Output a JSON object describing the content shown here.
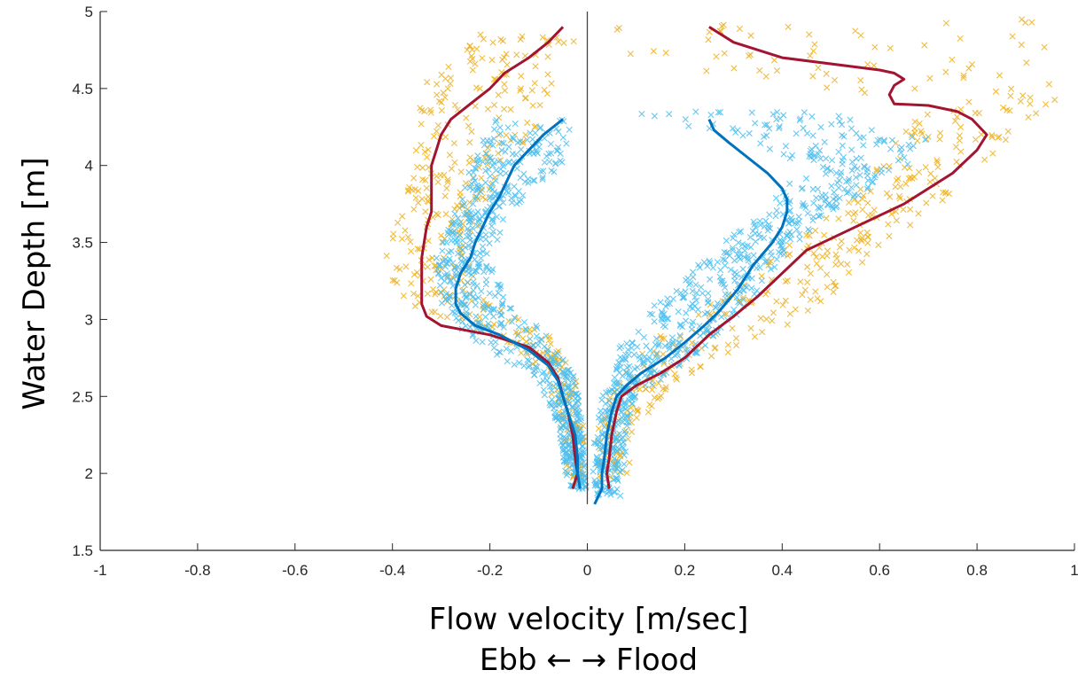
{
  "chart_data": {
    "type": "scatter",
    "title": "",
    "xlabel": "Flow velocity [m/sec]",
    "xlabel_line2": "Ebb ← → Flood",
    "ylabel": "Water Depth [m]",
    "xlim": [
      -1,
      1
    ],
    "ylim": [
      1.5,
      5
    ],
    "xticks": [
      -1,
      -0.8,
      -0.6,
      -0.4,
      -0.2,
      0,
      0.2,
      0.4,
      0.6,
      0.8,
      1
    ],
    "yticks": [
      1.5,
      2,
      2.5,
      3,
      3.5,
      4,
      4.5,
      5
    ],
    "xtick_labels": [
      "-1",
      "-0.8",
      "-0.6",
      "-0.4",
      "-0.2",
      "0",
      "0.2",
      "0.4",
      "0.6",
      "0.8",
      "1"
    ],
    "ytick_labels": [
      "1.5",
      "2",
      "2.5",
      "3",
      "3.5",
      "4",
      "4.5",
      "5"
    ],
    "grid": false,
    "zero_line": true,
    "series": [
      {
        "kind": "scatter",
        "color": "#EDB120",
        "marker": "x",
        "ebb_envelope": [
          [
            1.95,
            -0.04,
            0.0
          ],
          [
            2.3,
            -0.06,
            0.0
          ],
          [
            2.6,
            -0.08,
            -0.02
          ],
          [
            2.9,
            -0.18,
            -0.08
          ],
          [
            3.1,
            -0.38,
            -0.2
          ],
          [
            3.4,
            -0.42,
            -0.25
          ],
          [
            3.7,
            -0.38,
            -0.2
          ],
          [
            4.0,
            -0.36,
            -0.18
          ],
          [
            4.3,
            -0.35,
            -0.08
          ],
          [
            4.6,
            -0.33,
            -0.05
          ],
          [
            4.85,
            -0.22,
            -0.02
          ]
        ],
        "flood_envelope": [
          [
            1.95,
            0.02,
            0.08
          ],
          [
            2.3,
            0.02,
            0.1
          ],
          [
            2.6,
            0.06,
            0.18
          ],
          [
            2.9,
            0.15,
            0.38
          ],
          [
            3.2,
            0.3,
            0.52
          ],
          [
            3.5,
            0.42,
            0.62
          ],
          [
            3.8,
            0.55,
            0.74
          ],
          [
            4.1,
            0.62,
            0.84
          ],
          [
            4.4,
            0.7,
            0.96
          ],
          [
            4.7,
            0.05,
            0.98
          ],
          [
            4.95,
            0.05,
            0.92
          ]
        ]
      },
      {
        "kind": "scatter",
        "color": "#4DBEEE",
        "marker": "x",
        "ebb_envelope": [
          [
            1.9,
            -0.04,
            0.0
          ],
          [
            2.3,
            -0.06,
            -0.01
          ],
          [
            2.6,
            -0.1,
            -0.02
          ],
          [
            2.9,
            -0.25,
            -0.08
          ],
          [
            3.1,
            -0.3,
            -0.16
          ],
          [
            3.4,
            -0.31,
            -0.2
          ],
          [
            3.7,
            -0.27,
            -0.16
          ],
          [
            4.0,
            -0.24,
            -0.05
          ],
          [
            4.3,
            -0.2,
            -0.03
          ]
        ],
        "flood_envelope": [
          [
            1.85,
            0.01,
            0.07
          ],
          [
            2.2,
            0.01,
            0.08
          ],
          [
            2.5,
            0.03,
            0.1
          ],
          [
            2.8,
            0.06,
            0.24
          ],
          [
            3.1,
            0.14,
            0.33
          ],
          [
            3.4,
            0.24,
            0.4
          ],
          [
            3.7,
            0.36,
            0.5
          ],
          [
            4.0,
            0.45,
            0.66
          ],
          [
            4.2,
            0.3,
            0.7
          ],
          [
            4.35,
            0.05,
            0.5
          ]
        ]
      },
      {
        "kind": "line",
        "color": "#A2142F",
        "ebb": [
          [
            -0.03,
            1.9
          ],
          [
            -0.02,
            2.0
          ],
          [
            -0.025,
            2.1
          ],
          [
            -0.03,
            2.25
          ],
          [
            -0.04,
            2.4
          ],
          [
            -0.05,
            2.5
          ],
          [
            -0.06,
            2.62
          ],
          [
            -0.08,
            2.72
          ],
          [
            -0.12,
            2.82
          ],
          [
            -0.2,
            2.9
          ],
          [
            -0.3,
            2.96
          ],
          [
            -0.33,
            3.02
          ],
          [
            -0.34,
            3.1
          ],
          [
            -0.34,
            3.2
          ],
          [
            -0.34,
            3.3
          ],
          [
            -0.34,
            3.4
          ],
          [
            -0.335,
            3.5
          ],
          [
            -0.33,
            3.6
          ],
          [
            -0.32,
            3.7
          ],
          [
            -0.32,
            3.8
          ],
          [
            -0.32,
            3.9
          ],
          [
            -0.32,
            4.0
          ],
          [
            -0.31,
            4.1
          ],
          [
            -0.3,
            4.2
          ],
          [
            -0.28,
            4.3
          ],
          [
            -0.24,
            4.4
          ],
          [
            -0.2,
            4.5
          ],
          [
            -0.17,
            4.6
          ],
          [
            -0.12,
            4.7
          ],
          [
            -0.08,
            4.8
          ],
          [
            -0.05,
            4.9
          ]
        ],
        "flood": [
          [
            0.045,
            1.9
          ],
          [
            0.04,
            2.0
          ],
          [
            0.045,
            2.1
          ],
          [
            0.05,
            2.25
          ],
          [
            0.06,
            2.4
          ],
          [
            0.07,
            2.5
          ],
          [
            0.1,
            2.57
          ],
          [
            0.15,
            2.65
          ],
          [
            0.2,
            2.75
          ],
          [
            0.25,
            2.9
          ],
          [
            0.3,
            3.02
          ],
          [
            0.35,
            3.15
          ],
          [
            0.4,
            3.3
          ],
          [
            0.45,
            3.45
          ],
          [
            0.55,
            3.6
          ],
          [
            0.65,
            3.75
          ],
          [
            0.75,
            3.95
          ],
          [
            0.8,
            4.1
          ],
          [
            0.82,
            4.2
          ],
          [
            0.79,
            4.3
          ],
          [
            0.76,
            4.35
          ],
          [
            0.7,
            4.39
          ],
          [
            0.63,
            4.4
          ],
          [
            0.62,
            4.46
          ],
          [
            0.63,
            4.52
          ],
          [
            0.65,
            4.56
          ],
          [
            0.63,
            4.6
          ],
          [
            0.6,
            4.62
          ],
          [
            0.4,
            4.7
          ],
          [
            0.3,
            4.8
          ],
          [
            0.25,
            4.9
          ]
        ]
      },
      {
        "kind": "line",
        "color": "#0072BD",
        "ebb": [
          [
            -0.015,
            1.9
          ],
          [
            -0.02,
            2.0
          ],
          [
            -0.02,
            2.1
          ],
          [
            -0.025,
            2.25
          ],
          [
            -0.04,
            2.4
          ],
          [
            -0.05,
            2.5
          ],
          [
            -0.06,
            2.6
          ],
          [
            -0.08,
            2.7
          ],
          [
            -0.12,
            2.8
          ],
          [
            -0.18,
            2.9
          ],
          [
            -0.23,
            2.96
          ],
          [
            -0.26,
            3.04
          ],
          [
            -0.27,
            3.1
          ],
          [
            -0.27,
            3.2
          ],
          [
            -0.26,
            3.3
          ],
          [
            -0.24,
            3.4
          ],
          [
            -0.23,
            3.5
          ],
          [
            -0.215,
            3.6
          ],
          [
            -0.2,
            3.7
          ],
          [
            -0.18,
            3.8
          ],
          [
            -0.165,
            3.9
          ],
          [
            -0.15,
            4.0
          ],
          [
            -0.12,
            4.1
          ],
          [
            -0.09,
            4.2
          ],
          [
            -0.05,
            4.3
          ]
        ],
        "flood": [
          [
            0.015,
            1.8
          ],
          [
            0.03,
            1.9
          ],
          [
            0.03,
            2.0
          ],
          [
            0.035,
            2.1
          ],
          [
            0.04,
            2.25
          ],
          [
            0.05,
            2.4
          ],
          [
            0.06,
            2.5
          ],
          [
            0.08,
            2.57
          ],
          [
            0.11,
            2.65
          ],
          [
            0.16,
            2.75
          ],
          [
            0.2,
            2.85
          ],
          [
            0.24,
            2.96
          ],
          [
            0.27,
            3.05
          ],
          [
            0.31,
            3.2
          ],
          [
            0.34,
            3.35
          ],
          [
            0.38,
            3.5
          ],
          [
            0.4,
            3.6
          ],
          [
            0.41,
            3.7
          ],
          [
            0.41,
            3.78
          ],
          [
            0.4,
            3.85
          ],
          [
            0.37,
            3.95
          ],
          [
            0.33,
            4.05
          ],
          [
            0.29,
            4.15
          ],
          [
            0.26,
            4.23
          ],
          [
            0.25,
            4.3
          ]
        ]
      }
    ]
  }
}
